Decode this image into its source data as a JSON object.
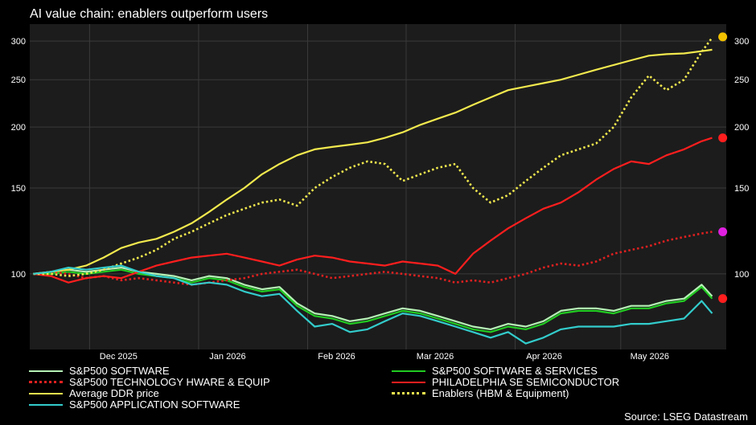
{
  "title": "AI value chain: enablers outperform users",
  "source": "Source: LSEG Datastream",
  "colors": {
    "background": "#000000",
    "plot_bg": "#1c1c1c",
    "grid": "#3a3a3a"
  },
  "chart_data": {
    "type": "line",
    "title": "AI value chain: enablers outperform users",
    "y_scale": "log",
    "ylim": [
      70,
      325
    ],
    "y_ticks": [
      100,
      150,
      200,
      250,
      300
    ],
    "x_ticks": [
      "Dec 2025",
      "Jan 2026",
      "Feb 2026",
      "Mar 2026",
      "Apr 2026",
      "May 2026"
    ],
    "x_tick_dates": [
      "2025-12-01",
      "2026-01-01",
      "2026-02-01",
      "2026-03-01",
      "2026-04-01",
      "2026-05-01"
    ],
    "x_range": [
      "2025-11-14",
      "2026-05-31"
    ],
    "grid": true,
    "legend_position": "bottom",
    "series": [
      {
        "name": "S&P500 SOFTWARE",
        "color": "#b6f2b6",
        "style": "solid",
        "legend_col": 0,
        "legend_row": 0,
        "x": [
          "2025-11-15",
          "2025-11-20",
          "2025-11-25",
          "2025-11-30",
          "2025-12-05",
          "2025-12-10",
          "2025-12-15",
          "2025-12-20",
          "2025-12-25",
          "2025-12-30",
          "2026-01-04",
          "2026-01-09",
          "2026-01-14",
          "2026-01-19",
          "2026-01-24",
          "2026-01-29",
          "2026-02-03",
          "2026-02-08",
          "2026-02-13",
          "2026-02-18",
          "2026-02-23",
          "2026-02-28",
          "2026-03-05",
          "2026-03-10",
          "2026-03-15",
          "2026-03-20",
          "2026-03-25",
          "2026-03-30",
          "2026-04-04",
          "2026-04-09",
          "2026-04-14",
          "2026-04-19",
          "2026-04-24",
          "2026-04-29",
          "2026-05-04",
          "2026-05-09",
          "2026-05-14",
          "2026-05-19",
          "2026-05-24",
          "2026-05-27"
        ],
        "y": [
          100,
          101,
          102,
          101,
          102,
          103,
          101,
          100,
          99,
          97,
          99,
          98,
          95,
          93,
          94,
          87,
          83,
          82,
          80,
          81,
          83,
          85,
          84,
          82,
          80,
          78,
          77,
          79,
          78,
          80,
          84,
          85,
          85,
          84,
          86,
          86,
          88,
          89,
          95,
          90
        ]
      },
      {
        "name": "S&P500 SOFTWARE & SERVICES",
        "color": "#22cc22",
        "style": "solid",
        "legend_col": 1,
        "legend_row": 0,
        "x": [
          "2025-11-15",
          "2025-11-20",
          "2025-11-25",
          "2025-11-30",
          "2025-12-05",
          "2025-12-10",
          "2025-12-15",
          "2025-12-20",
          "2025-12-25",
          "2025-12-30",
          "2026-01-04",
          "2026-01-09",
          "2026-01-14",
          "2026-01-19",
          "2026-01-24",
          "2026-01-29",
          "2026-02-03",
          "2026-02-08",
          "2026-02-13",
          "2026-02-18",
          "2026-02-23",
          "2026-02-28",
          "2026-03-05",
          "2026-03-10",
          "2026-03-15",
          "2026-03-20",
          "2026-03-25",
          "2026-03-30",
          "2026-04-04",
          "2026-04-09",
          "2026-04-14",
          "2026-04-19",
          "2026-04-24",
          "2026-04-29",
          "2026-05-04",
          "2026-05-09",
          "2026-05-14",
          "2026-05-19",
          "2026-05-24",
          "2026-05-27"
        ],
        "y": [
          100,
          100,
          101,
          100,
          101,
          102,
          100,
          99,
          98,
          96,
          98,
          97,
          94,
          92,
          93,
          86,
          82,
          81,
          79,
          80,
          82,
          84,
          83,
          81,
          79,
          77,
          76,
          78,
          77,
          79,
          83,
          84,
          84,
          83,
          85,
          85,
          87,
          88,
          94,
          89
        ]
      },
      {
        "name": "S&P500 TECHNOLOGY HWARE & EQUIP",
        "color": "#e02020",
        "style": "dotted",
        "legend_col": 0,
        "legend_row": 1,
        "x": [
          "2025-11-15",
          "2025-11-20",
          "2025-11-25",
          "2025-11-30",
          "2025-12-05",
          "2025-12-10",
          "2025-12-15",
          "2025-12-20",
          "2025-12-25",
          "2025-12-30",
          "2026-01-04",
          "2026-01-09",
          "2026-01-14",
          "2026-01-19",
          "2026-01-24",
          "2026-01-29",
          "2026-02-03",
          "2026-02-08",
          "2026-02-13",
          "2026-02-18",
          "2026-02-23",
          "2026-02-28",
          "2026-03-05",
          "2026-03-10",
          "2026-03-15",
          "2026-03-20",
          "2026-03-25",
          "2026-03-30",
          "2026-04-04",
          "2026-04-09",
          "2026-04-14",
          "2026-04-19",
          "2026-04-24",
          "2026-04-29",
          "2026-05-04",
          "2026-05-09",
          "2026-05-14",
          "2026-05-19",
          "2026-05-24",
          "2026-05-27"
        ],
        "y": [
          100,
          101,
          100,
          98,
          99,
          97,
          98,
          97,
          96,
          95,
          96,
          97,
          98,
          100,
          101,
          102,
          100,
          98,
          99,
          100,
          101,
          100,
          99,
          98,
          96,
          97,
          96,
          98,
          100,
          103,
          105,
          104,
          106,
          110,
          112,
          114,
          117,
          119,
          121,
          122
        ]
      },
      {
        "name": "PHILADELPHIA SE SEMICONDUCTOR",
        "color": "#ff1e1e",
        "style": "solid",
        "legend_col": 1,
        "legend_row": 1,
        "x": [
          "2025-11-15",
          "2025-11-20",
          "2025-11-25",
          "2025-11-30",
          "2025-12-05",
          "2025-12-10",
          "2025-12-15",
          "2025-12-20",
          "2025-12-25",
          "2025-12-30",
          "2026-01-04",
          "2026-01-09",
          "2026-01-14",
          "2026-01-19",
          "2026-01-24",
          "2026-01-29",
          "2026-02-03",
          "2026-02-08",
          "2026-02-13",
          "2026-02-18",
          "2026-02-23",
          "2026-02-28",
          "2026-03-05",
          "2026-03-10",
          "2026-03-15",
          "2026-03-20",
          "2026-03-25",
          "2026-03-30",
          "2026-04-04",
          "2026-04-09",
          "2026-04-14",
          "2026-04-19",
          "2026-04-24",
          "2026-04-29",
          "2026-05-04",
          "2026-05-09",
          "2026-05-14",
          "2026-05-19",
          "2026-05-24",
          "2026-05-27"
        ],
        "y": [
          100,
          99,
          96,
          98,
          99,
          98,
          101,
          104,
          106,
          108,
          109,
          110,
          108,
          106,
          104,
          107,
          109,
          108,
          106,
          105,
          104,
          106,
          105,
          104,
          100,
          110,
          117,
          124,
          130,
          136,
          140,
          147,
          156,
          164,
          170,
          168,
          175,
          180,
          187,
          190
        ]
      },
      {
        "name": "Average DDR price",
        "color": "#f2e94e",
        "style": "solid",
        "legend_col": 0,
        "legend_row": 2,
        "x": [
          "2025-11-15",
          "2025-11-20",
          "2025-11-25",
          "2025-11-30",
          "2025-12-05",
          "2025-12-10",
          "2025-12-15",
          "2025-12-20",
          "2025-12-25",
          "2025-12-30",
          "2026-01-04",
          "2026-01-09",
          "2026-01-14",
          "2026-01-19",
          "2026-01-24",
          "2026-01-29",
          "2026-02-03",
          "2026-02-08",
          "2026-02-13",
          "2026-02-18",
          "2026-02-23",
          "2026-02-28",
          "2026-03-05",
          "2026-03-10",
          "2026-03-15",
          "2026-03-20",
          "2026-03-25",
          "2026-03-30",
          "2026-04-04",
          "2026-04-09",
          "2026-04-14",
          "2026-04-19",
          "2026-04-24",
          "2026-04-29",
          "2026-05-04",
          "2026-05-09",
          "2026-05-14",
          "2026-05-19",
          "2026-05-24",
          "2026-05-27"
        ],
        "y": [
          100,
          101,
          102,
          104,
          108,
          113,
          116,
          118,
          122,
          127,
          134,
          142,
          150,
          160,
          168,
          175,
          180,
          182,
          184,
          186,
          190,
          195,
          202,
          208,
          214,
          222,
          230,
          238,
          242,
          246,
          250,
          256,
          262,
          268,
          274,
          280,
          282,
          283,
          286,
          288
        ]
      },
      {
        "name": "Enablers  (HBM & Equipment)",
        "color": "#f2e94e",
        "style": "dotted",
        "legend_col": 1,
        "legend_row": 2,
        "x": [
          "2025-11-15",
          "2025-11-20",
          "2025-11-25",
          "2025-11-30",
          "2025-12-05",
          "2025-12-10",
          "2025-12-15",
          "2025-12-20",
          "2025-12-25",
          "2025-12-30",
          "2026-01-04",
          "2026-01-09",
          "2026-01-14",
          "2026-01-19",
          "2026-01-24",
          "2026-01-29",
          "2026-02-03",
          "2026-02-08",
          "2026-02-13",
          "2026-02-18",
          "2026-02-23",
          "2026-02-28",
          "2026-03-05",
          "2026-03-10",
          "2026-03-15",
          "2026-03-20",
          "2026-03-25",
          "2026-03-30",
          "2026-04-04",
          "2026-04-09",
          "2026-04-14",
          "2026-04-19",
          "2026-04-24",
          "2026-04-29",
          "2026-05-04",
          "2026-05-09",
          "2026-05-14",
          "2026-05-19",
          "2026-05-24",
          "2026-05-27"
        ],
        "y": [
          100,
          100,
          99,
          100,
          102,
          105,
          108,
          112,
          118,
          122,
          127,
          132,
          136,
          140,
          142,
          138,
          150,
          158,
          165,
          170,
          168,
          155,
          160,
          165,
          168,
          150,
          140,
          145,
          155,
          165,
          175,
          180,
          185,
          200,
          230,
          255,
          238,
          250,
          285,
          305
        ]
      },
      {
        "name": "S&P500 APPLICATION SOFTWARE",
        "color": "#33cccc",
        "style": "solid",
        "legend_col": 0,
        "legend_row": 3,
        "x": [
          "2025-11-15",
          "2025-11-20",
          "2025-11-25",
          "2025-11-30",
          "2025-12-05",
          "2025-12-10",
          "2025-12-15",
          "2025-12-20",
          "2025-12-25",
          "2025-12-30",
          "2026-01-04",
          "2026-01-09",
          "2026-01-14",
          "2026-01-19",
          "2026-01-24",
          "2026-01-29",
          "2026-02-03",
          "2026-02-08",
          "2026-02-13",
          "2026-02-18",
          "2026-02-23",
          "2026-02-28",
          "2026-03-05",
          "2026-03-10",
          "2026-03-15",
          "2026-03-20",
          "2026-03-25",
          "2026-03-30",
          "2026-04-04",
          "2026-04-09",
          "2026-04-14",
          "2026-04-19",
          "2026-04-24",
          "2026-04-29",
          "2026-05-04",
          "2026-05-09",
          "2026-05-14",
          "2026-05-19",
          "2026-05-24",
          "2026-05-27"
        ],
        "y": [
          100,
          101,
          103,
          102,
          103,
          104,
          101,
          99,
          98,
          95,
          96,
          95,
          92,
          90,
          91,
          84,
          78,
          79,
          76,
          77,
          80,
          83,
          82,
          80,
          78,
          76,
          74,
          76,
          72,
          74,
          77,
          78,
          78,
          78,
          79,
          79,
          80,
          81,
          88,
          83
        ]
      }
    ],
    "end_markers": [
      {
        "series": "Enablers  (HBM & Equipment)",
        "date": "2026-05-30",
        "y": 306,
        "color": "#f2c200"
      },
      {
        "series": "PHILADELPHIA SE SEMICONDUCTOR",
        "date": "2026-05-30",
        "y": 190,
        "color": "#ff1e1e"
      },
      {
        "series": "S&P500 TECHNOLOGY HWARE & EQUIP",
        "date": "2026-05-30",
        "y": 122,
        "color": "#e020e0"
      },
      {
        "series": "S&P500 SOFTWARE & SERVICES",
        "date": "2026-05-30",
        "y": 89,
        "color": "#ff1e1e"
      }
    ]
  }
}
